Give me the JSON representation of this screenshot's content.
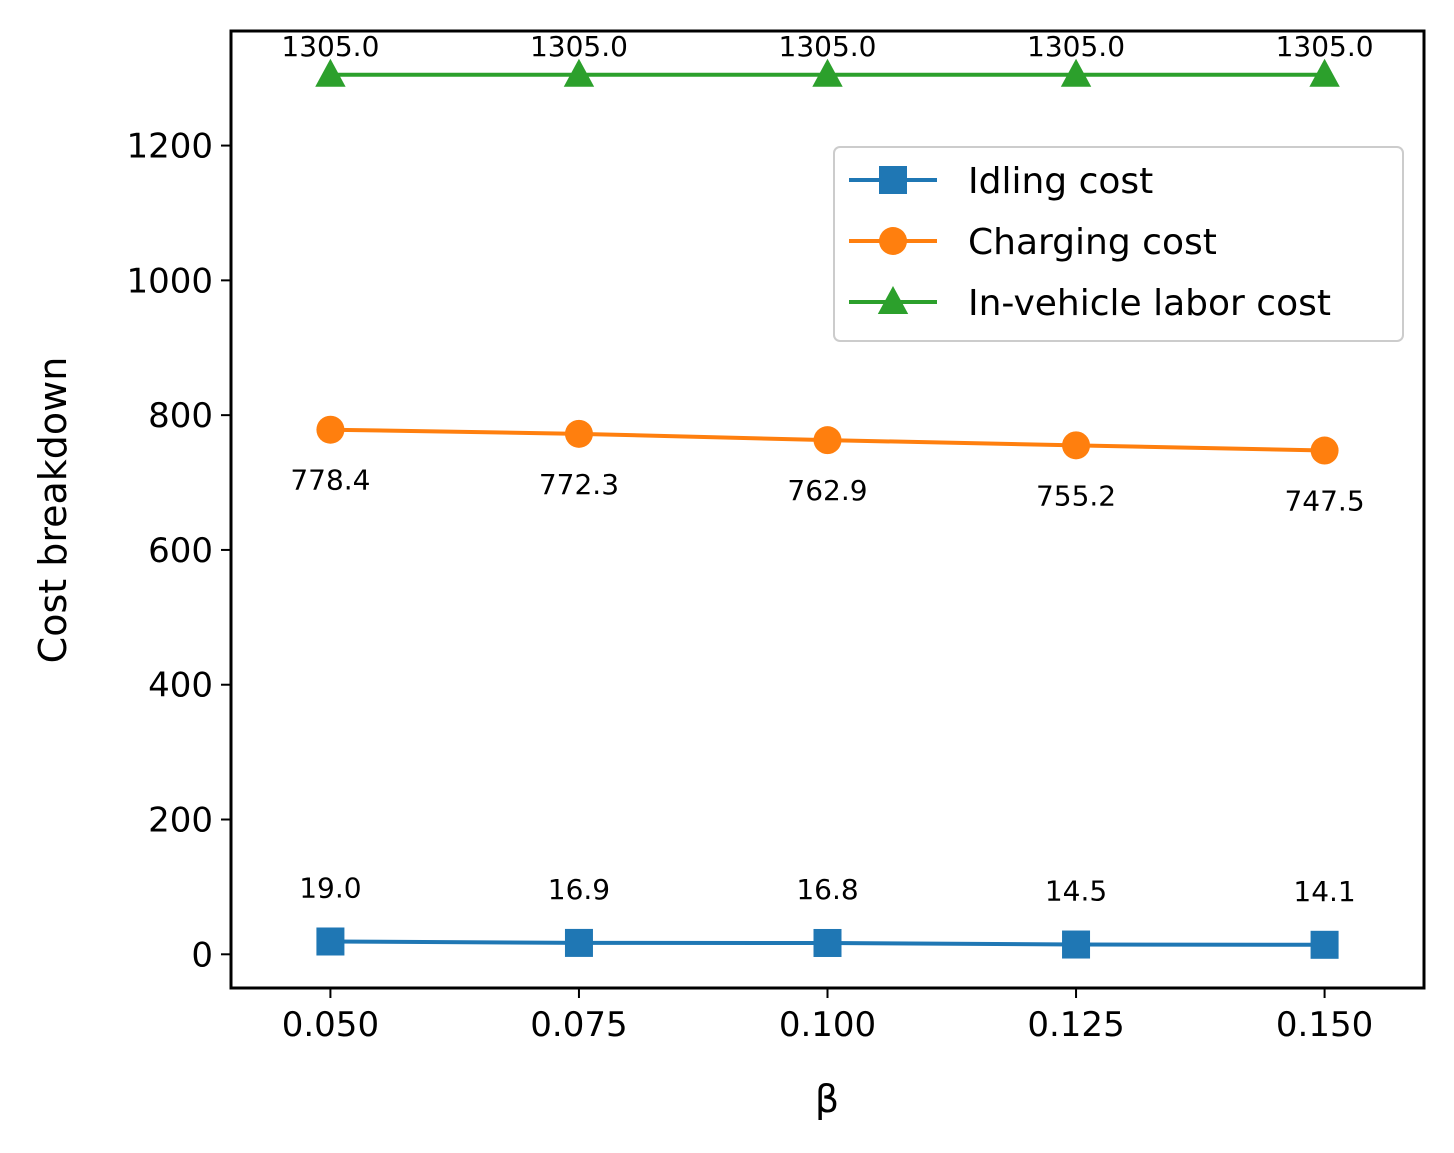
{
  "chart_data": {
    "type": "line",
    "title": "",
    "xlabel": "β",
    "ylabel": "Cost breakdown",
    "x": [
      0.05,
      0.075,
      0.1,
      0.125,
      0.15
    ],
    "x_tick_labels": [
      "0.050",
      "0.075",
      "0.100",
      "0.125",
      "0.150"
    ],
    "y_ticks": [
      0,
      200,
      400,
      600,
      800,
      1000,
      1200
    ],
    "y_tick_labels": [
      "0",
      "200",
      "400",
      "600",
      "800",
      "1000",
      "1200"
    ],
    "xlim": [
      0.04,
      0.16
    ],
    "ylim": [
      -50,
      1370
    ],
    "grid": false,
    "legend_position": "upper-right",
    "series": [
      {
        "name": "Idling cost",
        "marker": "square",
        "color": "#1f77b4",
        "values": [
          19.0,
          16.9,
          16.8,
          14.5,
          14.1
        ],
        "labels": [
          "19.0",
          "16.9",
          "16.8",
          "14.5",
          "14.1"
        ],
        "label_position": "above"
      },
      {
        "name": "Charging cost",
        "marker": "circle",
        "color": "#ff7f0e",
        "values": [
          778.4,
          772.3,
          762.9,
          755.2,
          747.5
        ],
        "labels": [
          "778.4",
          "772.3",
          "762.9",
          "755.2",
          "747.5"
        ],
        "label_position": "below"
      },
      {
        "name": "In-vehicle labor cost",
        "marker": "triangle",
        "color": "#2ca02c",
        "values": [
          1305.0,
          1305.0,
          1305.0,
          1305.0,
          1305.0
        ],
        "labels": [
          "1305.0",
          "1305.0",
          "1305.0",
          "1305.0",
          "1305.0"
        ],
        "label_position": "above"
      }
    ]
  }
}
